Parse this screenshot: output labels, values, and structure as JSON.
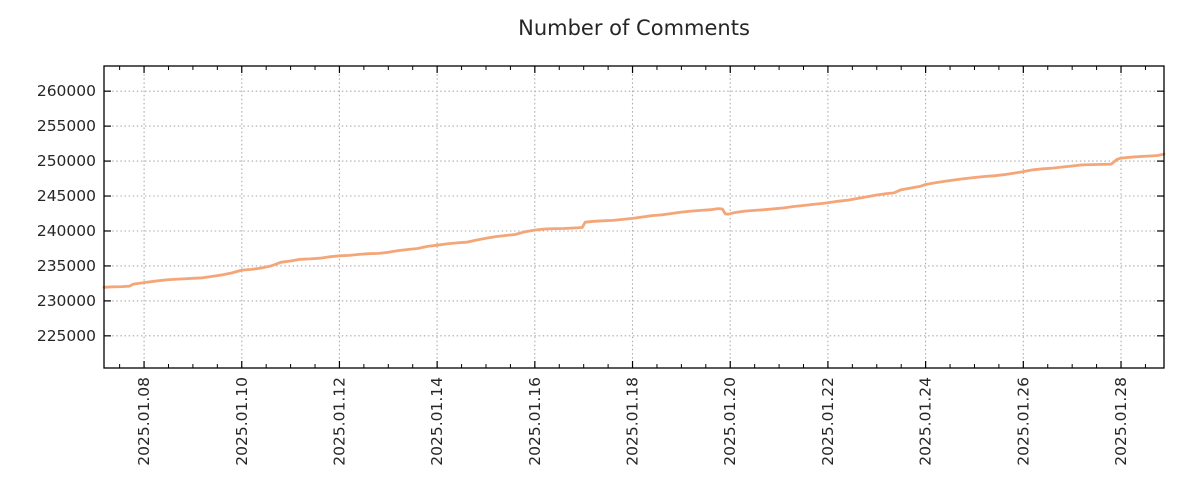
{
  "title": "Number of Comments",
  "colors": {
    "line": "#f4a679",
    "grid": "#ababab",
    "axis": "#000000",
    "tick_label": "#262626",
    "title": "#262626",
    "background": "#ffffff"
  },
  "chart_data": {
    "type": "line",
    "title": "Number of Comments",
    "xlabel": "",
    "ylabel": "",
    "legend": "none",
    "grid": "dotted at major ticks, both axes",
    "x_unit": "day of January 2025",
    "xlim": [
      7.18,
      28.88
    ],
    "ylim": [
      220400,
      263600
    ],
    "y_ticks": [
      225000,
      230000,
      235000,
      240000,
      245000,
      250000,
      255000,
      260000
    ],
    "x_major_ticks": [
      {
        "t": 8,
        "label": "2025.01.08"
      },
      {
        "t": 10,
        "label": "2025.01.10"
      },
      {
        "t": 12,
        "label": "2025.01.12"
      },
      {
        "t": 14,
        "label": "2025.01.14"
      },
      {
        "t": 16,
        "label": "2025.01.16"
      },
      {
        "t": 18,
        "label": "2025.01.18"
      },
      {
        "t": 20,
        "label": "2025.01.20"
      },
      {
        "t": 22,
        "label": "2025.01.22"
      },
      {
        "t": 24,
        "label": "2025.01.24"
      },
      {
        "t": 26,
        "label": "2025.01.26"
      },
      {
        "t": 28,
        "label": "2025.01.28"
      }
    ],
    "x_minor_step": 0.5,
    "series": [
      {
        "name": "number-of-comments",
        "color": "#f4a679",
        "points": [
          [
            7.18,
            231950
          ],
          [
            7.35,
            232020
          ],
          [
            7.55,
            232050
          ],
          [
            7.7,
            232100
          ],
          [
            7.78,
            232400
          ],
          [
            8.0,
            232620
          ],
          [
            8.2,
            232800
          ],
          [
            8.45,
            233000
          ],
          [
            8.7,
            233120
          ],
          [
            9.0,
            233230
          ],
          [
            9.2,
            233300
          ],
          [
            9.4,
            233500
          ],
          [
            9.6,
            233720
          ],
          [
            9.8,
            234000
          ],
          [
            10.0,
            234400
          ],
          [
            10.2,
            234500
          ],
          [
            10.4,
            234700
          ],
          [
            10.6,
            235000
          ],
          [
            10.8,
            235520
          ],
          [
            11.0,
            235700
          ],
          [
            11.2,
            235950
          ],
          [
            11.4,
            236000
          ],
          [
            11.6,
            236100
          ],
          [
            11.8,
            236300
          ],
          [
            12.0,
            236450
          ],
          [
            12.2,
            236500
          ],
          [
            12.4,
            236650
          ],
          [
            12.6,
            236750
          ],
          [
            12.8,
            236800
          ],
          [
            13.0,
            236950
          ],
          [
            13.2,
            237200
          ],
          [
            13.4,
            237350
          ],
          [
            13.6,
            237500
          ],
          [
            13.8,
            237800
          ],
          [
            14.0,
            237970
          ],
          [
            14.2,
            238150
          ],
          [
            14.4,
            238300
          ],
          [
            14.6,
            238400
          ],
          [
            14.8,
            238700
          ],
          [
            15.0,
            238950
          ],
          [
            15.2,
            239200
          ],
          [
            15.4,
            239350
          ],
          [
            15.6,
            239500
          ],
          [
            15.8,
            239900
          ],
          [
            16.0,
            240130
          ],
          [
            16.2,
            240280
          ],
          [
            16.4,
            240340
          ],
          [
            16.6,
            240350
          ],
          [
            16.8,
            240420
          ],
          [
            16.97,
            240500
          ],
          [
            17.03,
            241250
          ],
          [
            17.2,
            241380
          ],
          [
            17.4,
            241450
          ],
          [
            17.6,
            241520
          ],
          [
            17.8,
            241650
          ],
          [
            18.0,
            241800
          ],
          [
            18.2,
            242000
          ],
          [
            18.4,
            242200
          ],
          [
            18.6,
            242300
          ],
          [
            18.8,
            242500
          ],
          [
            19.0,
            242700
          ],
          [
            19.2,
            242850
          ],
          [
            19.4,
            242950
          ],
          [
            19.6,
            243050
          ],
          [
            19.75,
            243200
          ],
          [
            19.84,
            243150
          ],
          [
            19.9,
            242450
          ],
          [
            19.96,
            242400
          ],
          [
            20.1,
            242650
          ],
          [
            20.3,
            242850
          ],
          [
            20.5,
            242950
          ],
          [
            20.7,
            243050
          ],
          [
            20.9,
            243180
          ],
          [
            21.1,
            243300
          ],
          [
            21.3,
            243500
          ],
          [
            21.5,
            243650
          ],
          [
            21.7,
            243800
          ],
          [
            21.9,
            243950
          ],
          [
            22.0,
            244050
          ],
          [
            22.2,
            244250
          ],
          [
            22.4,
            244400
          ],
          [
            22.6,
            244650
          ],
          [
            22.8,
            244900
          ],
          [
            23.0,
            245150
          ],
          [
            23.2,
            245350
          ],
          [
            23.35,
            245450
          ],
          [
            23.5,
            245900
          ],
          [
            23.7,
            246150
          ],
          [
            23.9,
            246400
          ],
          [
            24.0,
            246650
          ],
          [
            24.2,
            246900
          ],
          [
            24.4,
            247100
          ],
          [
            24.6,
            247300
          ],
          [
            24.8,
            247500
          ],
          [
            25.0,
            247650
          ],
          [
            25.2,
            247800
          ],
          [
            25.4,
            247900
          ],
          [
            25.6,
            248050
          ],
          [
            25.8,
            248250
          ],
          [
            26.0,
            248500
          ],
          [
            26.2,
            248750
          ],
          [
            26.4,
            248900
          ],
          [
            26.6,
            249000
          ],
          [
            26.8,
            249150
          ],
          [
            27.0,
            249300
          ],
          [
            27.2,
            249450
          ],
          [
            27.4,
            249500
          ],
          [
            27.6,
            249520
          ],
          [
            27.8,
            249560
          ],
          [
            27.92,
            250250
          ],
          [
            28.0,
            250430
          ],
          [
            28.2,
            250550
          ],
          [
            28.4,
            250650
          ],
          [
            28.6,
            250720
          ],
          [
            28.75,
            250800
          ],
          [
            28.88,
            251000
          ]
        ]
      }
    ]
  }
}
